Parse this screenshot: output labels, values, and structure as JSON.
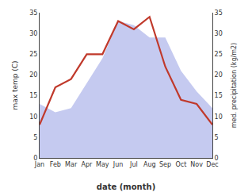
{
  "chart_data": {
    "type": "line",
    "xlabel": "date (month)",
    "ylabel": "max temp (C)",
    "y2label": "med. precipitation (kg/m2)",
    "categories": [
      "Jan",
      "Feb",
      "Mar",
      "Apr",
      "May",
      "Jun",
      "Jul",
      "Aug",
      "Sep",
      "Oct",
      "Nov",
      "Dec"
    ],
    "series": [
      {
        "type": "area",
        "axis": "y2",
        "color": "#c5caf0",
        "values": [
          13,
          11,
          12,
          18,
          24,
          33,
          32,
          29,
          29,
          21,
          16,
          12
        ]
      },
      {
        "type": "line",
        "color": "#c0392b",
        "values": [
          8,
          17,
          19,
          25,
          25,
          33,
          31,
          34,
          22,
          14,
          13,
          8
        ]
      }
    ],
    "ylim": [
      0,
      35
    ],
    "yticks": [
      0,
      5,
      10,
      15,
      20,
      25,
      30,
      35
    ],
    "y2lim": [
      0,
      35
    ],
    "y2ticks": [
      0,
      5,
      10,
      15,
      20,
      25,
      30,
      35
    ],
    "grid": false
  }
}
